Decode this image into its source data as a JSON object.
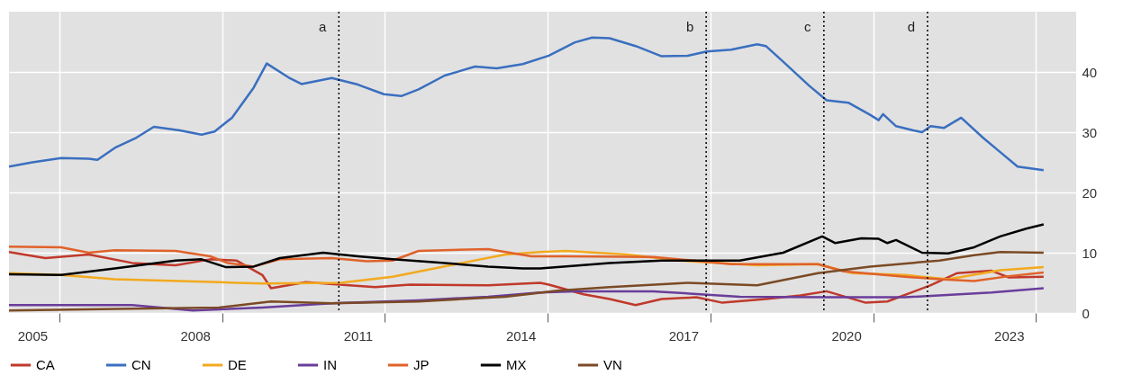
{
  "chart_data": {
    "type": "line",
    "xlim": [
      2005.07,
      2024.74
    ],
    "ylim": [
      0,
      50
    ],
    "yticks": [
      0,
      10,
      20,
      30,
      40
    ],
    "xticks": [
      {
        "value": 2005.5,
        "label": "2005"
      },
      {
        "value": 2008.5,
        "label": "2008"
      },
      {
        "value": 2011.5,
        "label": "2011"
      },
      {
        "value": 2014.5,
        "label": "2014"
      },
      {
        "value": 2017.5,
        "label": "2017"
      },
      {
        "value": 2020.5,
        "label": "2020"
      },
      {
        "value": 2023.5,
        "label": "2023"
      },
      {
        "value": 2006,
        "label": null
      },
      {
        "value": 2009,
        "label": null
      },
      {
        "value": 2012,
        "label": null
      },
      {
        "value": 2015,
        "label": null
      },
      {
        "value": 2018,
        "label": null
      },
      {
        "value": 2021,
        "label": null
      },
      {
        "value": 2024,
        "label": null
      }
    ],
    "grid": true,
    "legend": "bottom",
    "line_style": "solid",
    "marker": "none",
    "ref_lines": [
      {
        "axis": "x",
        "value": 2011.15,
        "label": "a",
        "color": "#000000",
        "line_style": "dotted"
      },
      {
        "axis": "x",
        "value": 2017.92,
        "label": "b",
        "color": "#000000",
        "line_style": "dotted"
      },
      {
        "axis": "x",
        "value": 2020.09,
        "label": "c",
        "color": "#000000",
        "line_style": "dotted"
      },
      {
        "axis": "x",
        "value": 2022.0,
        "label": "d",
        "color": "#000000",
        "line_style": "dotted"
      }
    ],
    "series": [
      {
        "name": "CA",
        "color": "#c0392b",
        "x": [
          2005.07,
          2005.74,
          2006.54,
          2007.34,
          2008.14,
          2008.78,
          2009.26,
          2009.74,
          2009.9,
          2010.54,
          2011.34,
          2011.82,
          2012.46,
          2013.9,
          2014.86,
          2015.02,
          2015.66,
          2016.14,
          2016.62,
          2017.1,
          2017.74,
          2018.22,
          2019.02,
          2019.66,
          2020.14,
          2020.86,
          2021.26,
          2022.06,
          2022.54,
          2023.18,
          2023.5,
          2024.14
        ],
        "values": [
          10.1,
          9.1,
          9.7,
          8.3,
          7.9,
          8.9,
          8.7,
          6.3,
          4.1,
          5.1,
          4.6,
          4.3,
          4.7,
          4.6,
          5,
          4.7,
          3.1,
          2.3,
          1.3,
          2.3,
          2.6,
          1.7,
          2.3,
          2.9,
          3.6,
          1.7,
          1.9,
          4.6,
          6.6,
          7,
          5.9,
          6
        ]
      },
      {
        "name": "CN",
        "color": "#3a6fbf",
        "x": [
          2005.07,
          2005.5,
          2006.03,
          2006.54,
          2006.7,
          2007.02,
          2007.42,
          2007.74,
          2008.22,
          2008.62,
          2008.86,
          2009.18,
          2009.58,
          2009.82,
          2010.22,
          2010.46,
          2011.02,
          2011.5,
          2011.98,
          2012.3,
          2012.62,
          2013.1,
          2013.66,
          2014.06,
          2014.54,
          2015.02,
          2015.5,
          2015.82,
          2016.14,
          2016.62,
          2017.1,
          2017.58,
          2017.93,
          2018.38,
          2018.86,
          2019.02,
          2019.34,
          2019.82,
          2020.14,
          2020.54,
          2020.94,
          2021.1,
          2021.18,
          2021.42,
          2021.74,
          2021.9,
          2022.06,
          2022.3,
          2022.62,
          2023.02,
          2023.34,
          2023.66,
          2024.14
        ],
        "values": [
          24.3,
          25,
          25.7,
          25.6,
          25.4,
          27.4,
          29.1,
          30.9,
          30.3,
          29.6,
          30.1,
          32.4,
          37.4,
          41.4,
          39.1,
          38,
          39,
          37.9,
          36.3,
          36,
          37.1,
          39.4,
          40.9,
          40.6,
          41.3,
          42.7,
          44.9,
          45.7,
          45.6,
          44.3,
          42.6,
          42.7,
          43.4,
          43.7,
          44.6,
          44.3,
          41.7,
          37.7,
          35.3,
          34.9,
          32.9,
          32,
          33,
          31,
          30.3,
          30,
          31,
          30.7,
          32.4,
          29.1,
          26.7,
          24.3,
          23.7
        ]
      },
      {
        "name": "DE",
        "color": "#f2a91e",
        "x": [
          2005.07,
          2006.03,
          2007.02,
          2008.94,
          2009.74,
          2011.18,
          2012.14,
          2013.42,
          2014.22,
          2014.86,
          2015.34,
          2016.46,
          2017.42,
          2018.86,
          2019.98,
          2020.62,
          2021.58,
          2022.38,
          2023.34,
          2024.14
        ],
        "values": [
          6.6,
          6.3,
          5.6,
          5.1,
          4.9,
          5,
          6,
          8.3,
          9.7,
          10.1,
          10.3,
          9.7,
          8.7,
          7.9,
          8.1,
          6.6,
          6.3,
          5.6,
          7.1,
          7.6
        ]
      },
      {
        "name": "IN",
        "color": "#6a3d9a",
        "x": [
          2005.07,
          2007.34,
          2008.46,
          2009.74,
          2011.02,
          2012.62,
          2013.9,
          2014.86,
          2015.5,
          2016.94,
          2018.54,
          2020.14,
          2021.58,
          2023.18,
          2024.14
        ],
        "values": [
          1.3,
          1.3,
          0.4,
          0.9,
          1.6,
          2.1,
          2.7,
          3.4,
          3.6,
          3.6,
          2.7,
          2.6,
          2.6,
          3.4,
          4.1
        ]
      },
      {
        "name": "JP",
        "color": "#e0622a",
        "x": [
          2005.07,
          2006.03,
          2006.54,
          2007.02,
          2008.14,
          2008.78,
          2009.1,
          2009.58,
          2010.06,
          2011.02,
          2011.66,
          2012.14,
          2012.62,
          2013.9,
          2014.7,
          2015.34,
          2016.94,
          2018.38,
          2019.98,
          2020.46,
          2021.58,
          2022.22,
          2022.86,
          2023.5,
          2024.14
        ],
        "values": [
          11,
          10.9,
          10,
          10.4,
          10.3,
          9.4,
          8.3,
          7.7,
          8.9,
          9.1,
          8.6,
          8.7,
          10.3,
          10.6,
          9.4,
          9.4,
          9.3,
          8.1,
          8.1,
          6.9,
          6,
          5.6,
          5.3,
          6.1,
          6.7
        ]
      },
      {
        "name": "MX",
        "color": "#000000",
        "x": [
          2005.07,
          2006.03,
          2007.02,
          2008.14,
          2008.62,
          2009.07,
          2009.58,
          2010.06,
          2010.86,
          2011.5,
          2012.14,
          2012.94,
          2013.9,
          2014.54,
          2014.86,
          2016.14,
          2017.1,
          2018.54,
          2019.34,
          2020.06,
          2020.3,
          2020.78,
          2021.1,
          2021.26,
          2021.42,
          2021.9,
          2022.38,
          2022.86,
          2023.34,
          2023.82,
          2024.14
        ],
        "values": [
          6.4,
          6.3,
          7.4,
          8.7,
          8.9,
          7.6,
          7.7,
          9.1,
          10,
          9.4,
          8.9,
          8.4,
          7.7,
          7.4,
          7.4,
          8.3,
          8.7,
          8.7,
          10,
          12.7,
          11.6,
          12.4,
          12.3,
          11.6,
          12.1,
          10,
          9.9,
          10.9,
          12.7,
          14,
          14.7
        ]
      },
      {
        "name": "VN",
        "color": "#7b4a25",
        "x": [
          2005.07,
          2007.34,
          2008.94,
          2009.9,
          2011.02,
          2012.62,
          2014.22,
          2015.18,
          2016.14,
          2017.58,
          2018.86,
          2019.98,
          2020.94,
          2022.22,
          2022.86,
          2023.34,
          2024.14
        ],
        "values": [
          0.4,
          0.7,
          0.9,
          1.9,
          1.6,
          1.9,
          2.7,
          3.7,
          4.3,
          5,
          4.6,
          6.6,
          7.7,
          8.7,
          9.6,
          10.1,
          10
        ]
      }
    ]
  }
}
